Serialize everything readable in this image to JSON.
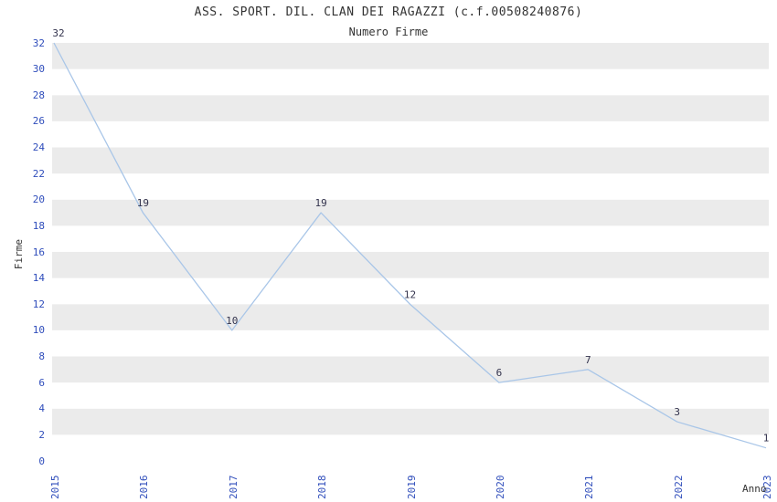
{
  "chart_data": {
    "type": "line",
    "title": "ASS. SPORT. DIL. CLAN DEI RAGAZZI (c.f.00508240876)",
    "subtitle": "Numero Firme",
    "categories": [
      "2015",
      "2016",
      "2017",
      "2018",
      "2019",
      "2020",
      "2021",
      "2022",
      "2023"
    ],
    "values": [
      32,
      19,
      10,
      19,
      12,
      6,
      7,
      3,
      1
    ],
    "xlabel": "Anno",
    "ylabel": "Firme",
    "ylim": [
      0,
      32
    ],
    "ytick_step": 2,
    "y_ticks": [
      0,
      2,
      4,
      6,
      8,
      10,
      12,
      14,
      16,
      18,
      20,
      22,
      24,
      26,
      28,
      30,
      32
    ],
    "grid": "horizontal-bands",
    "legend": "none",
    "line_color": "#a9c6e8",
    "band_color": "#ebebeb",
    "tick_color": "#2f4dbb",
    "label_color": "#33334d",
    "title_color": "#333333"
  }
}
